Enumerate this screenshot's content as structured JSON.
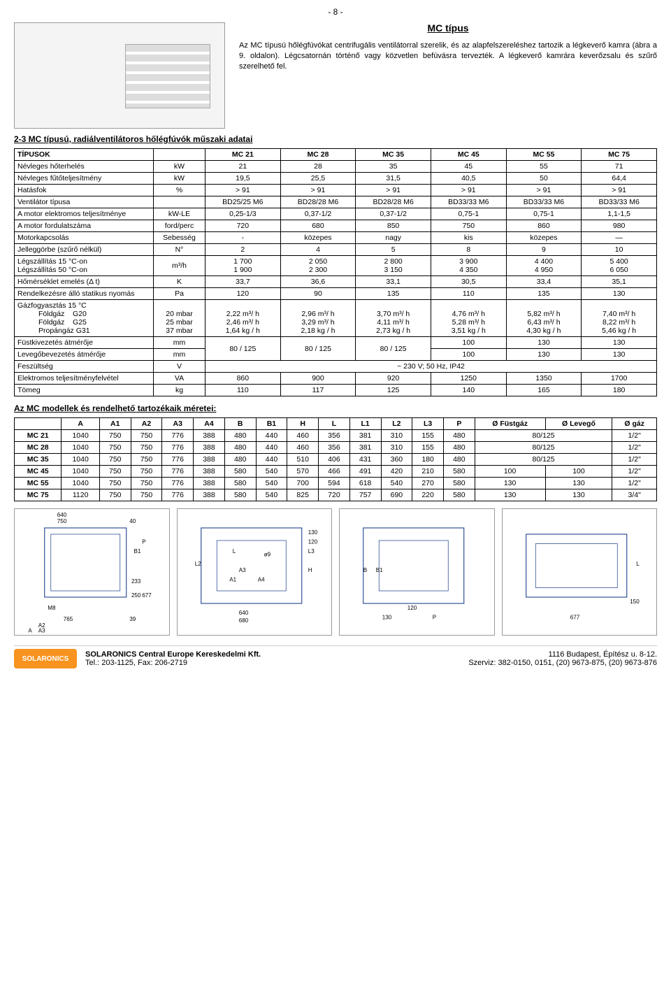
{
  "page_number": "- 8 -",
  "header": {
    "title": "MC típus",
    "subhead_left": "2-3 MC típusú, radiálventilátoros hőlégfúvók műszaki adatai",
    "desc": "Az MC típusú hőlégfúvókat centrifugális ventilátorral szerelik, és az alapfelszereléshez tartozik a légkeverő kamra (ábra a 9. oldalon). Légcsatornán történő vagy közvetlen befúvásra tervezték.\nA légkeverő kamrára keverőzsalu és szűrő szerelhető fel."
  },
  "table1": {
    "type": "table",
    "colhead": "TÍPUSOK",
    "cols": [
      "MC 21",
      "MC 28",
      "MC 35",
      "MC 45",
      "MC 55",
      "MC 75"
    ],
    "rows": [
      {
        "label": "Névleges hőterhelés",
        "unit": "kW",
        "vals": [
          "21",
          "28",
          "35",
          "45",
          "55",
          "71"
        ]
      },
      {
        "label": "Névleges fűtőteljesítmény",
        "unit": "kW",
        "vals": [
          "19,5",
          "25,5",
          "31,5",
          "40,5",
          "50",
          "64,4"
        ]
      },
      {
        "label": "Hatásfok",
        "unit": "%",
        "vals": [
          "> 91",
          "> 91",
          "> 91",
          "> 91",
          "> 91",
          "> 91"
        ]
      },
      {
        "label": "Ventilátor típusa",
        "unit": "",
        "vals": [
          "BD25/25 M6",
          "BD28/28 M6",
          "BD28/28 M6",
          "BD33/33 M6",
          "BD33/33 M6",
          "BD33/33 M6"
        ]
      },
      {
        "label": "A motor elektromos teljesítménye",
        "unit": "kW-LE",
        "vals": [
          "0,25-1/3",
          "0,37-1/2",
          "0,37-1/2",
          "0,75-1",
          "0,75-1",
          "1,1-1,5"
        ]
      },
      {
        "label": "A motor fordulatszáma",
        "unit": "ford/perc",
        "vals": [
          "720",
          "680",
          "850",
          "750",
          "860",
          "980"
        ]
      },
      {
        "label": "Motorkapcsolás",
        "unit": "Sebesség",
        "vals": [
          "-",
          "közepes",
          "nagy",
          "kis",
          "közepes",
          "—"
        ]
      },
      {
        "label": "Jelleggörbe (szűrő nélkül)",
        "unit": "N°",
        "vals": [
          "2",
          "4",
          "5",
          "8",
          "9",
          "10"
        ]
      }
    ],
    "row_legszall": {
      "label_a": "Légszállítás 15 °C-on",
      "label_b": "Légszállítás 50 °C-on",
      "unit": "m³/h",
      "vals_a": [
        "1 700",
        "2 050",
        "2 800",
        "3 900",
        "4 400",
        "5 400"
      ],
      "vals_b": [
        "1 900",
        "2 300",
        "3 150",
        "4 350",
        "4 950",
        "6 050"
      ]
    },
    "rows2": [
      {
        "label": "Hőmérséklet emelés (Δ t)",
        "unit": "K",
        "vals": [
          "33,7",
          "36,6",
          "33,1",
          "30,5",
          "33,4",
          "35,1"
        ]
      },
      {
        "label": "Rendelkezésre álló statikus nyomás",
        "unit": "Pa",
        "vals": [
          "120",
          "90",
          "135",
          "110",
          "135",
          "130"
        ]
      }
    ],
    "row_gas": {
      "label": "Gázfogyasztás 15 °C",
      "sub": [
        {
          "l1": "Földgáz",
          "l2": "G20",
          "unit": "20 mbar",
          "vals": [
            "2,22 m³/ h",
            "2,96 m³/ h",
            "3,70 m³/ h",
            "4,76 m³/ h",
            "5,82 m³/ h",
            "7,40 m³/ h"
          ]
        },
        {
          "l1": "Földgáz",
          "l2": "G25",
          "unit": "25 mbar",
          "vals": [
            "2,46 m³/ h",
            "3,29 m³/ h",
            "4,11 m³/ h",
            "5,28 m³/ h",
            "6,43 m³/ h",
            "8,22 m³/ h"
          ]
        },
        {
          "l1": "Propángáz",
          "l2": "G31",
          "unit": "37 mbar",
          "vals": [
            "1,64 kg / h",
            "2,18 kg / h",
            "2,73 kg / h",
            "3,51 kg / h",
            "4,30 kg / h",
            "5,46 kg / h"
          ]
        }
      ]
    },
    "row_flue": {
      "label_a": "Füstkivezetés átmérője",
      "label_b": "Levegőbevezetés átmérője",
      "unit_a": "mm",
      "unit_b": "mm",
      "left3": [
        "80 / 125",
        "80 / 125",
        "80 / 125"
      ],
      "right_a": [
        "100",
        "130",
        "130"
      ],
      "right_b": [
        "100",
        "130",
        "130"
      ]
    },
    "row_volt": {
      "label": "Feszültség",
      "unit": "V",
      "span": "~ 230 V; 50 Hz, IP42"
    },
    "rows3": [
      {
        "label": "Elektromos teljesítményfelvétel",
        "unit": "VA",
        "vals": [
          "860",
          "900",
          "920",
          "1250",
          "1350",
          "1700"
        ]
      },
      {
        "label": "Tömeg",
        "unit": "kg",
        "vals": [
          "110",
          "117",
          "125",
          "140",
          "165",
          "180"
        ]
      }
    ]
  },
  "subhead2": "Az MC modellek és rendelhető tartozékaik méretei:",
  "table2": {
    "cols": [
      "A",
      "A1",
      "A2",
      "A3",
      "A4",
      "B",
      "B1",
      "H",
      "L",
      "L1",
      "L2",
      "L3",
      "P",
      "Ø Füstgáz",
      "Ø Levegő",
      "Ø gáz"
    ],
    "rows": [
      {
        "model": "MC 21",
        "vals": [
          "1040",
          "750",
          "750",
          "776",
          "388",
          "480",
          "440",
          "460",
          "356",
          "381",
          "310",
          "155",
          "480"
        ],
        "fuse": "80/125",
        "lev": "",
        "gaz": "1/2\""
      },
      {
        "model": "MC 28",
        "vals": [
          "1040",
          "750",
          "750",
          "776",
          "388",
          "480",
          "440",
          "460",
          "356",
          "381",
          "310",
          "155",
          "480"
        ],
        "fuse": "80/125",
        "lev": "",
        "gaz": "1/2\""
      },
      {
        "model": "MC 35",
        "vals": [
          "1040",
          "750",
          "750",
          "776",
          "388",
          "480",
          "440",
          "510",
          "406",
          "431",
          "360",
          "180",
          "480"
        ],
        "fuse": "80/125",
        "lev": "",
        "gaz": "1/2\""
      },
      {
        "model": "MC 45",
        "vals": [
          "1040",
          "750",
          "750",
          "776",
          "388",
          "580",
          "540",
          "570",
          "466",
          "491",
          "420",
          "210",
          "580"
        ],
        "fuse": "100",
        "lev": "100",
        "gaz": "1/2\""
      },
      {
        "model": "MC 55",
        "vals": [
          "1040",
          "750",
          "750",
          "776",
          "388",
          "580",
          "540",
          "700",
          "594",
          "618",
          "540",
          "270",
          "580"
        ],
        "fuse": "130",
        "lev": "130",
        "gaz": "1/2\""
      },
      {
        "model": "MC 75",
        "vals": [
          "1120",
          "750",
          "750",
          "776",
          "388",
          "580",
          "540",
          "825",
          "720",
          "757",
          "690",
          "220",
          "580"
        ],
        "fuse": "130",
        "lev": "130",
        "gaz": "3/4\""
      }
    ]
  },
  "diagram_labels": {
    "d1": [
      "750",
      "640",
      "40",
      "B1",
      "P",
      "233",
      "M8",
      "250",
      "677",
      "765",
      "39",
      "A2",
      "A3",
      "A"
    ],
    "d2": [
      "L2",
      "L",
      "A3",
      "A1",
      "A4",
      "ø9",
      "130",
      "120",
      "L3",
      "H",
      "640",
      "680"
    ],
    "d3": [
      "B",
      "B1",
      "120",
      "130",
      "P"
    ],
    "d4": [
      "L",
      "150",
      "677"
    ]
  },
  "footer": {
    "company": "SOLARONICS Central Europe Kereskedelmi Kft.",
    "tel": "Tel.: 203-1125, Fax: 206-2719",
    "addr": "1116 Budapest, Építész u. 8-12.",
    "service": "Szerviz: 382-0150, 0151, (20) 9673-875, (20) 9673-876",
    "logo": "SOLARONICS"
  },
  "colors": {
    "border": "#000",
    "logo_bg": "#f7931e",
    "diag_line": "#1a3e8c"
  }
}
